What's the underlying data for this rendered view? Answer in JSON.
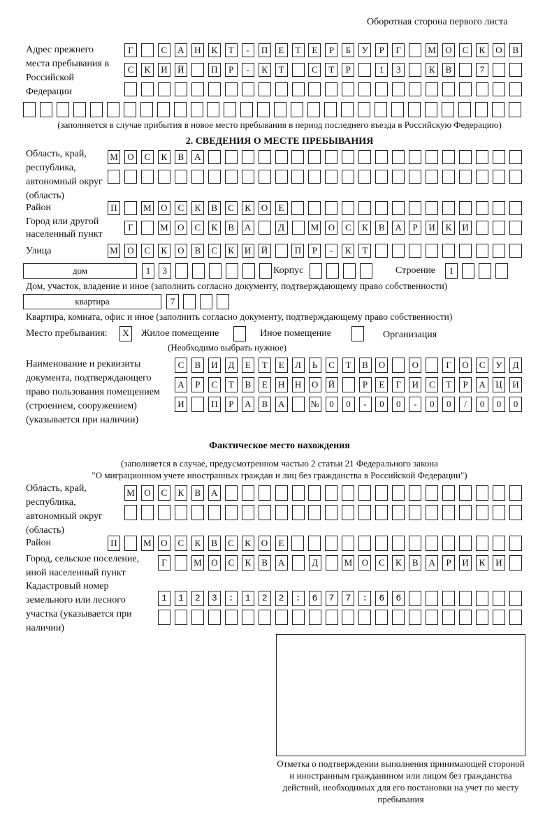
{
  "header": "Оборотная сторона первого листа",
  "prev_address": {
    "label": "Адрес прежнего места пребывания в Российской Федерации",
    "rows": [
      "Г САНКТ-ПЕТЕРБУРГ МОСКОВ",
      "СКИЙ ПР-КТ СТР 13 КВ 7",
      "",
      ""
    ],
    "note": "(заполняется в случае прибытия в новое место пребывания в период последнего въезда в Российскую Федерацию)"
  },
  "section2": {
    "title": "2. СВЕДЕНИЯ О МЕСТЕ ПРЕБЫВАНИЯ",
    "region_label": "Область, край, республика, автономный округ (область)",
    "region_rows": [
      "МОСКВА",
      ""
    ],
    "district_label": "Район",
    "district": "П МОСКВСКОЕ",
    "city_label": "Город или другой населенный пункт",
    "city": "Г МОСКВА Д МОСКВАРИКИ",
    "street_label": "Улица",
    "street": "МОСКОВСКИЙ ПР-КТ",
    "house_type": "дом",
    "house_number": "13",
    "korpus_label": "Корпус",
    "korpus": "",
    "building_label": "Строение",
    "building": "1",
    "house_note": "Дом, участок, владение и иное (заполнить согласно документу, подтверждающему право собственности)",
    "apt_type": "квартира",
    "apt_number": "7",
    "apt_note": "Квартира, комната, офис и иное (заполнить согласно документу, подтверждающему право собственности)",
    "stay_label": "Место пребывания:",
    "stay_options": [
      {
        "label": "Жилое помещение",
        "mark": "X"
      },
      {
        "label": "Иное помещение",
        "mark": ""
      },
      {
        "label": "Организация",
        "mark": ""
      }
    ],
    "stay_note": "(Необходимо выбрать нужное)",
    "doc_label": "Наименование и реквизиты документа, подтверждающего право пользования помещением (строением, сооружением) (указывается при наличии)",
    "doc_rows": [
      "СВИДЕТЕЛЬСТВО О ГОСУД",
      "АРСТВЕННОЙ РЕГИСТРАЦИ",
      "И ПРАВА №00-00-00/000"
    ]
  },
  "actual": {
    "title": "Фактическое место нахождения",
    "note1": "(заполняется в случае, предусмотренном частью 2 статьи 21 Федерального закона",
    "note2": "\"О миграционном учете иностранных граждан и лиц без гражданства в Российской Федерации\")",
    "region_label": "Область, край, республика, автономный округ (область)",
    "region_rows": [
      "МОСКВА",
      ""
    ],
    "district_label": "Район",
    "district": "П МОСКВСКОЕ",
    "city_label": "Город, сельское поселение, иной населенный пункт",
    "city": "Г МОСКВА Д МОСКВАРИКИ",
    "cadastre_label": "Кадастровый номер земельного или лесного участка (указывается при наличии)",
    "cadastre_rows": [
      "1123:122:677:66",
      ""
    ]
  },
  "stamp_caption": "Отметка о подтверждении выполнения принимающей стороной и иностранным гражданином или лицом без гражданства действий, необходимых для его постановки на учет по месту пребывания"
}
